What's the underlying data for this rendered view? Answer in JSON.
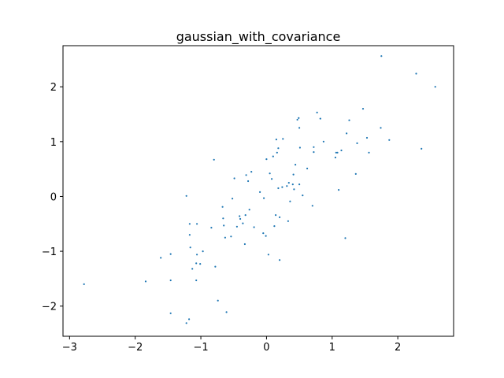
{
  "chart_data": {
    "type": "scatter",
    "title": "gaussian_with_covariance",
    "xlabel": "",
    "ylabel": "",
    "xlim": [
      -3.1,
      2.85
    ],
    "ylim": [
      -2.55,
      2.75
    ],
    "grid": false,
    "legend": "none",
    "marker_color": "#1f77b4",
    "xticks": [
      -3,
      -2,
      -1,
      0,
      1,
      2
    ],
    "yticks": [
      -2,
      -1,
      0,
      1,
      2
    ],
    "xtick_labels": [
      "−3",
      "−2",
      "−1",
      "0",
      "1",
      "2"
    ],
    "ytick_labels": [
      "−2",
      "−1",
      "0",
      "1",
      "2"
    ],
    "x": [
      -2.78,
      -1.84,
      -1.61,
      -1.46,
      -1.46,
      -1.46,
      -1.22,
      -1.18,
      -1.17,
      -1.13,
      -1.07,
      -1.01,
      -1.22,
      -1.17,
      -1.16,
      -1.07,
      -1.06,
      -0.97,
      -0.84,
      -0.8,
      -0.78,
      -0.74,
      -0.67,
      -0.65,
      -0.66,
      -0.61,
      -0.54,
      -0.52,
      -0.49,
      -0.45,
      -0.41,
      -0.4,
      -0.36,
      -0.33,
      -0.32,
      -0.31,
      -0.28,
      -0.26,
      -0.23,
      -0.19,
      -0.1,
      -0.05,
      -0.04,
      -0.01,
      0.0,
      0.03,
      0.05,
      0.1,
      0.12,
      0.14,
      0.15,
      0.16,
      0.18,
      0.2,
      0.2,
      0.24,
      0.25,
      0.31,
      0.33,
      0.34,
      0.36,
      0.41,
      0.42,
      0.44,
      0.47,
      0.49,
      0.5,
      0.51,
      0.55,
      0.62,
      0.7,
      0.72,
      0.72,
      0.77,
      0.82,
      0.87,
      1.05,
      1.06,
      1.08,
      1.1,
      1.14,
      1.2,
      1.22,
      1.26,
      1.36,
      1.38,
      1.47,
      1.53,
      1.56,
      1.74,
      1.75,
      1.87,
      2.28,
      2.36,
      2.57,
      0.08,
      0.4,
      0.5,
      -0.63,
      -1.06,
      0.18
    ],
    "y": [
      -1.6,
      -1.55,
      -1.12,
      -2.13,
      -1.05,
      -1.53,
      -2.31,
      -2.24,
      -0.5,
      -1.32,
      -1.53,
      -1.23,
      0.01,
      -0.7,
      -0.93,
      -1.22,
      -1.06,
      -1.0,
      -0.57,
      0.67,
      -1.28,
      -1.9,
      -0.19,
      -0.53,
      -0.4,
      -2.11,
      -0.73,
      -0.04,
      0.33,
      -0.55,
      -0.36,
      -0.41,
      -0.49,
      -0.87,
      -0.34,
      0.39,
      0.28,
      -0.24,
      0.45,
      -0.56,
      0.08,
      -0.67,
      -0.03,
      -0.72,
      0.68,
      -1.06,
      0.42,
      0.73,
      -0.54,
      -0.34,
      1.04,
      0.8,
      0.88,
      -0.38,
      -1.16,
      0.17,
      1.05,
      0.19,
      -0.45,
      0.25,
      -0.09,
      0.4,
      0.13,
      0.58,
      1.4,
      1.43,
      1.25,
      0.89,
      0.02,
      0.51,
      -0.17,
      0.9,
      0.81,
      1.53,
      1.42,
      1.0,
      0.71,
      0.8,
      0.8,
      0.12,
      0.84,
      -0.76,
      1.15,
      1.39,
      0.41,
      0.97,
      1.6,
      1.07,
      0.8,
      1.25,
      2.56,
      1.03,
      2.24,
      0.87,
      2.0,
      0.32,
      0.22,
      0.22,
      -0.75,
      -0.5,
      0.15
    ]
  }
}
